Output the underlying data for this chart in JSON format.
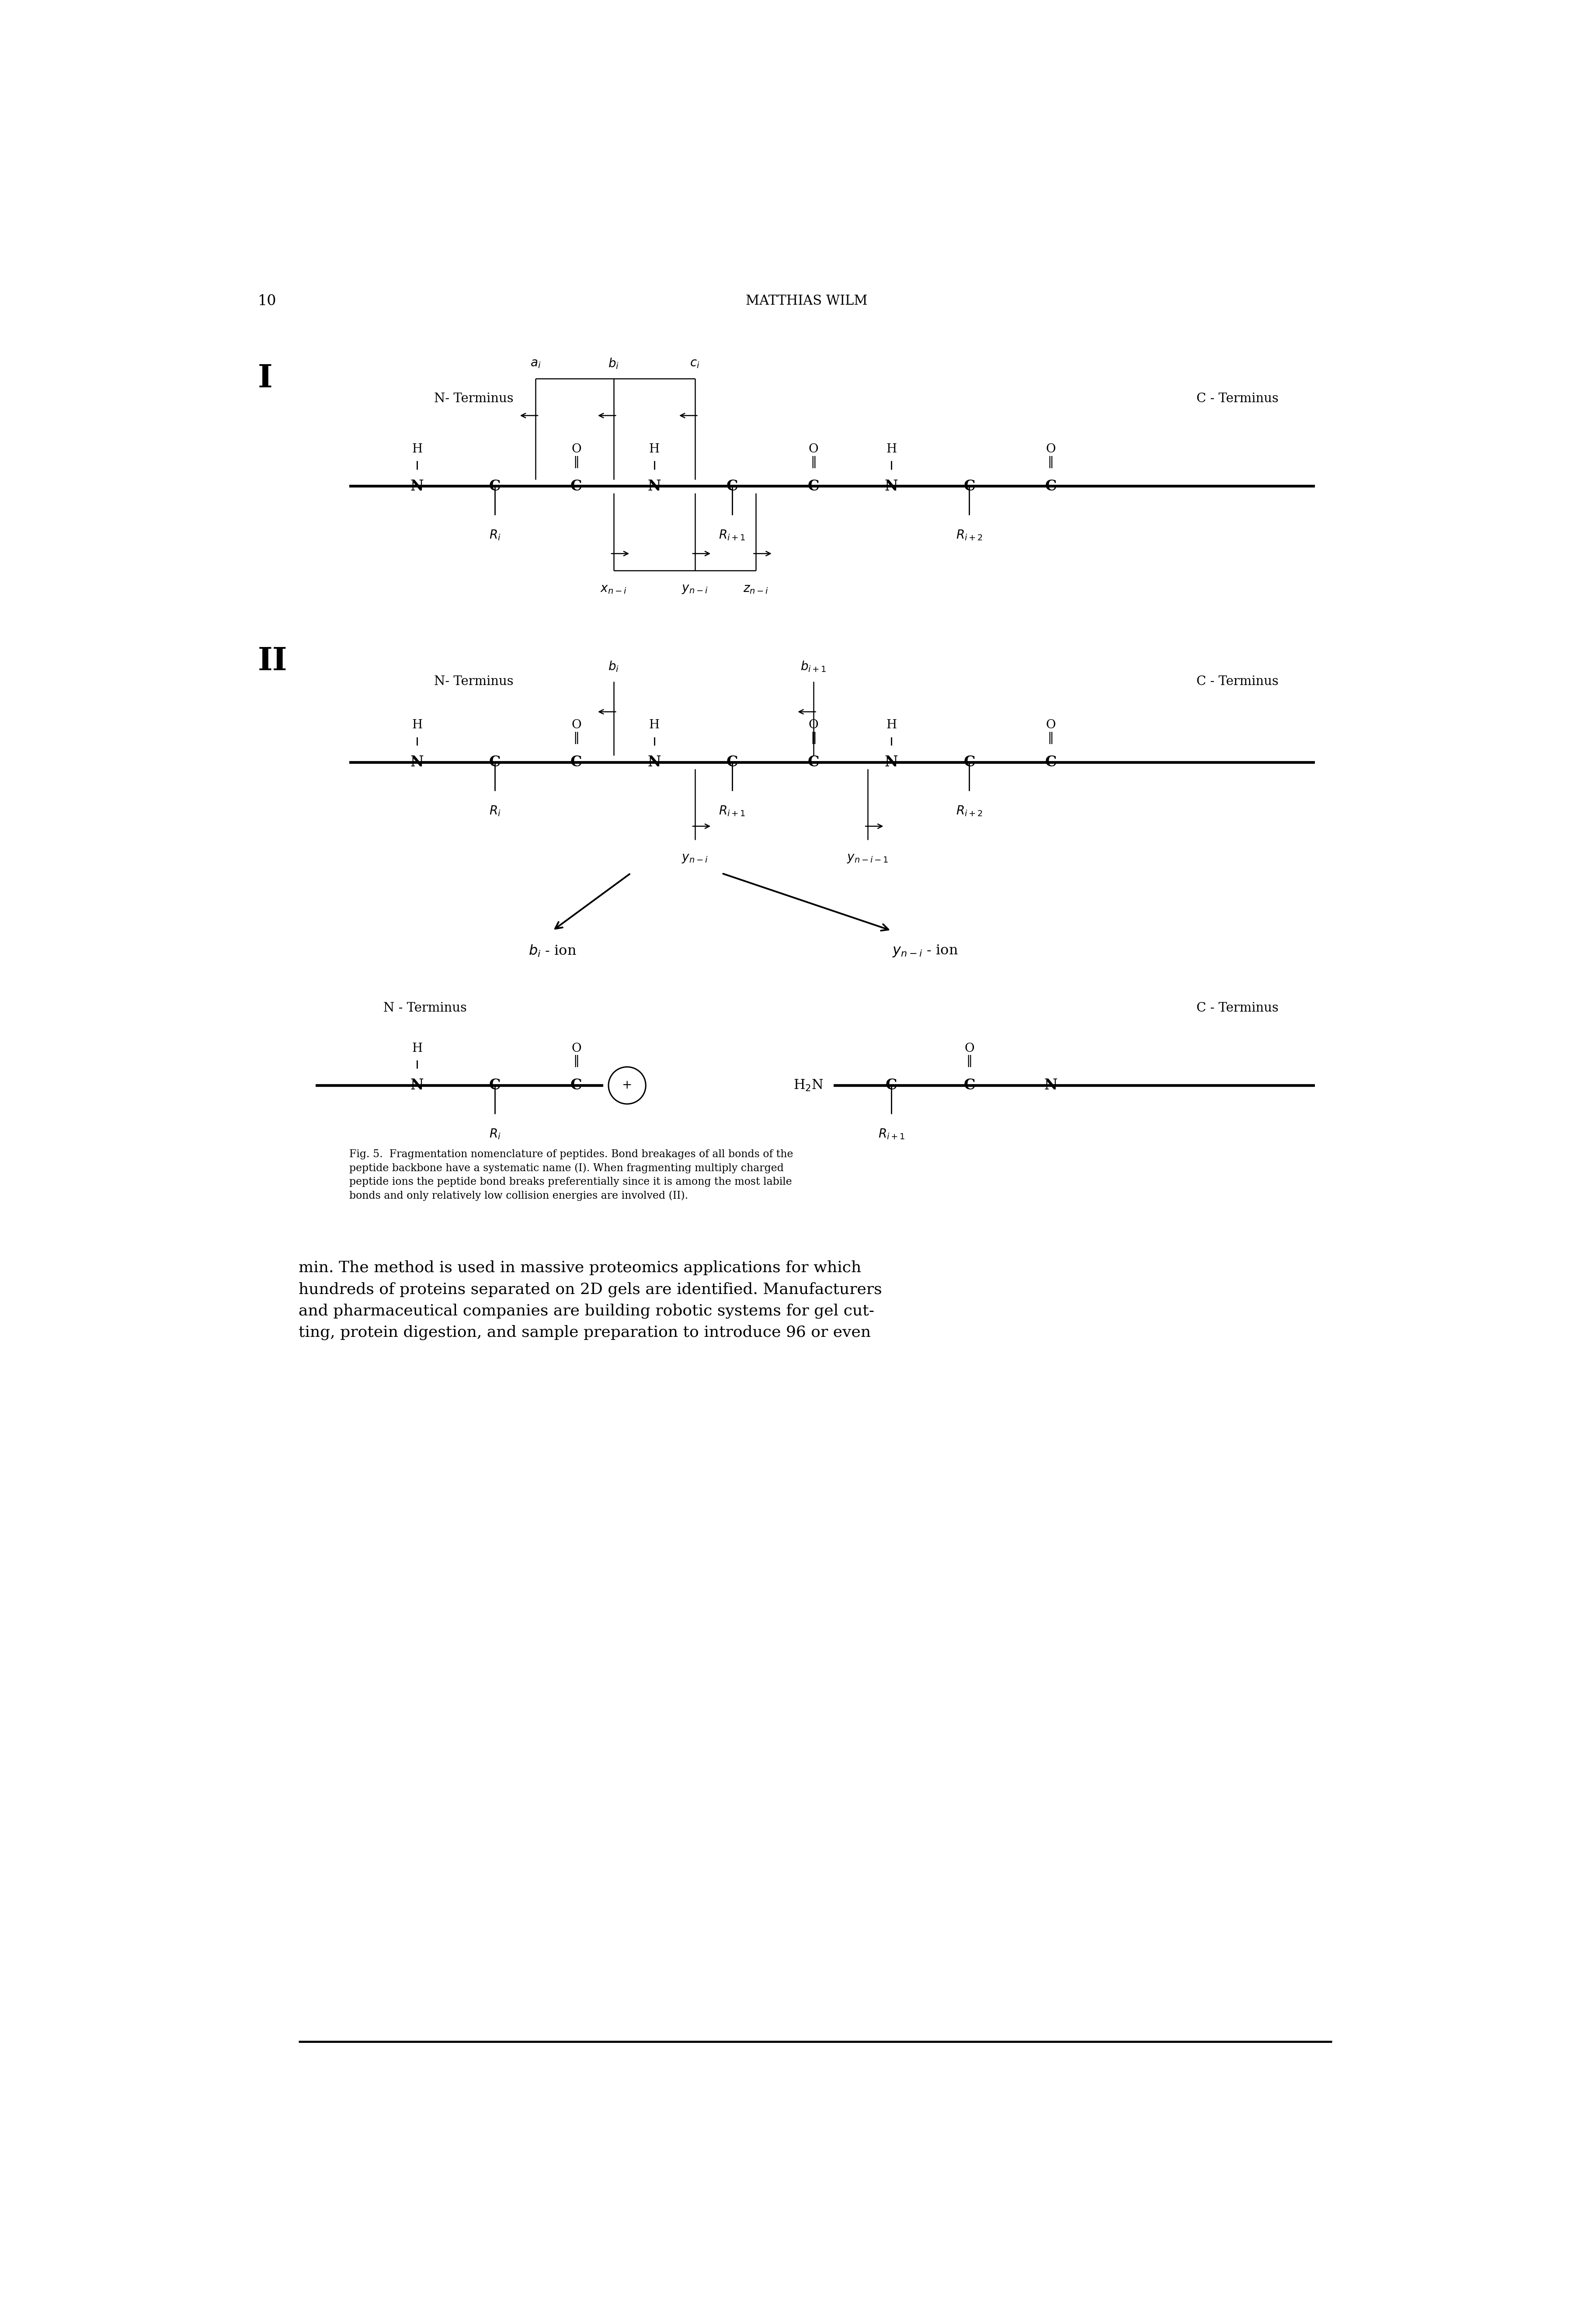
{
  "page_number": "10",
  "header_text": "MATTHIAS WILM",
  "bg_color": "#ffffff",
  "text_color": "#000000",
  "fig_caption": "Fig. 5.  Fragmentation nomenclature of peptides. Bond breakages of all bonds of the peptide backbone have a systematic name (I). When fragmenting multiply charged peptide ions the peptide bond breaks preferentially since it is among the most labile bonds and only relatively low collision energies are involved (II).",
  "bottom_text": "min. The method is used in massive proteomics applications for which\nhundreds of proteins separated on 2D gels are identified. Manufacturers\nand pharmaceutical companies are building robotic systems for gel cut-\nting, protein digestion, and sample preparation to introduce 96 or even",
  "roman_I": "I",
  "roman_II": "II"
}
